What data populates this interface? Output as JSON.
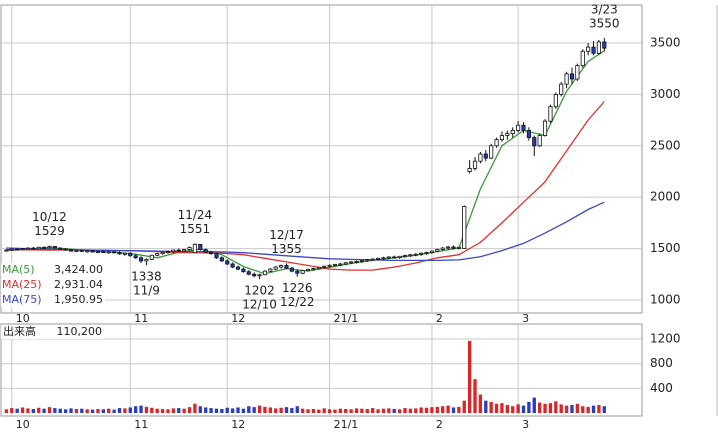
{
  "chart_data": {
    "type": "candlestick",
    "xlim": [
      -1,
      118
    ],
    "xticks": [
      {
        "value": 1,
        "label": "10"
      },
      {
        "value": 23,
        "label": "11"
      },
      {
        "value": 41,
        "label": "12"
      },
      {
        "value": 60,
        "label": "21/1"
      },
      {
        "value": 79,
        "label": "2"
      },
      {
        "value": 95,
        "label": "3"
      }
    ],
    "ylim": [
      873,
      3870
    ],
    "yticks": [
      1000,
      1500,
      2000,
      2500,
      3000,
      3500
    ],
    "grid": true,
    "up_color": "#ffffff",
    "down_color": "#1f3fbf",
    "ohlc": [
      [
        1480,
        1495,
        1470,
        1485
      ],
      [
        1485,
        1500,
        1478,
        1495
      ],
      [
        1495,
        1505,
        1485,
        1490
      ],
      [
        1490,
        1505,
        1482,
        1500
      ],
      [
        1500,
        1512,
        1492,
        1505
      ],
      [
        1505,
        1515,
        1495,
        1498
      ],
      [
        1498,
        1518,
        1495,
        1512
      ],
      [
        1512,
        1522,
        1500,
        1508
      ],
      [
        1508,
        1529,
        1505,
        1520
      ],
      [
        1520,
        1525,
        1500,
        1505
      ],
      [
        1505,
        1512,
        1490,
        1495
      ],
      [
        1495,
        1505,
        1480,
        1488
      ],
      [
        1488,
        1495,
        1470,
        1475
      ],
      [
        1475,
        1488,
        1465,
        1482
      ],
      [
        1482,
        1490,
        1468,
        1472
      ],
      [
        1472,
        1482,
        1460,
        1478
      ],
      [
        1478,
        1485,
        1462,
        1466
      ],
      [
        1466,
        1478,
        1455,
        1470
      ],
      [
        1470,
        1480,
        1458,
        1462
      ],
      [
        1462,
        1475,
        1450,
        1468
      ],
      [
        1468,
        1476,
        1455,
        1460
      ],
      [
        1460,
        1472,
        1440,
        1448
      ],
      [
        1448,
        1460,
        1430,
        1455
      ],
      [
        1455,
        1462,
        1420,
        1430
      ],
      [
        1430,
        1445,
        1400,
        1410
      ],
      [
        1410,
        1425,
        1360,
        1380
      ],
      [
        1380,
        1405,
        1338,
        1395
      ],
      [
        1395,
        1440,
        1390,
        1435
      ],
      [
        1435,
        1460,
        1425,
        1450
      ],
      [
        1450,
        1470,
        1440,
        1462
      ],
      [
        1462,
        1480,
        1450,
        1470
      ],
      [
        1470,
        1490,
        1455,
        1485
      ],
      [
        1485,
        1500,
        1470,
        1478
      ],
      [
        1478,
        1495,
        1465,
        1490
      ],
      [
        1490,
        1520,
        1480,
        1510
      ],
      [
        1460,
        1551,
        1455,
        1540
      ],
      [
        1540,
        1545,
        1480,
        1490
      ],
      [
        1490,
        1500,
        1455,
        1465
      ],
      [
        1465,
        1478,
        1440,
        1450
      ],
      [
        1450,
        1462,
        1400,
        1410
      ],
      [
        1410,
        1425,
        1370,
        1380
      ],
      [
        1380,
        1395,
        1340,
        1350
      ],
      [
        1350,
        1365,
        1310,
        1320
      ],
      [
        1320,
        1335,
        1290,
        1300
      ],
      [
        1300,
        1315,
        1265,
        1275
      ],
      [
        1275,
        1290,
        1240,
        1250
      ],
      [
        1250,
        1268,
        1220,
        1235
      ],
      [
        1235,
        1255,
        1202,
        1245
      ],
      [
        1245,
        1290,
        1240,
        1280
      ],
      [
        1280,
        1310,
        1270,
        1300
      ],
      [
        1300,
        1330,
        1290,
        1320
      ],
      [
        1320,
        1345,
        1305,
        1335
      ],
      [
        1335,
        1355,
        1300,
        1310
      ],
      [
        1310,
        1320,
        1270,
        1280
      ],
      [
        1280,
        1295,
        1226,
        1260
      ],
      [
        1260,
        1290,
        1250,
        1285
      ],
      [
        1285,
        1305,
        1275,
        1298
      ],
      [
        1298,
        1312,
        1285,
        1305
      ],
      [
        1305,
        1325,
        1295,
        1318
      ],
      [
        1318,
        1335,
        1305,
        1328
      ],
      [
        1328,
        1345,
        1315,
        1338
      ],
      [
        1338,
        1352,
        1325,
        1345
      ],
      [
        1345,
        1360,
        1332,
        1350
      ],
      [
        1350,
        1368,
        1340,
        1362
      ],
      [
        1362,
        1378,
        1350,
        1370
      ],
      [
        1370,
        1385,
        1355,
        1375
      ],
      [
        1375,
        1390,
        1362,
        1385
      ],
      [
        1385,
        1400,
        1370,
        1392
      ],
      [
        1392,
        1405,
        1378,
        1398
      ],
      [
        1398,
        1412,
        1385,
        1405
      ],
      [
        1405,
        1420,
        1390,
        1410
      ],
      [
        1410,
        1425,
        1398,
        1418
      ],
      [
        1418,
        1432,
        1402,
        1412
      ],
      [
        1412,
        1428,
        1400,
        1425
      ],
      [
        1425,
        1440,
        1410,
        1432
      ],
      [
        1432,
        1448,
        1418,
        1440
      ],
      [
        1440,
        1455,
        1425,
        1445
      ],
      [
        1445,
        1462,
        1430,
        1455
      ],
      [
        1455,
        1470,
        1440,
        1462
      ],
      [
        1462,
        1480,
        1450,
        1475
      ],
      [
        1475,
        1500,
        1465,
        1492
      ],
      [
        1492,
        1515,
        1480,
        1505
      ],
      [
        1505,
        1525,
        1490,
        1515
      ],
      [
        1515,
        1530,
        1495,
        1502
      ],
      [
        1502,
        1520,
        1490,
        1512
      ],
      [
        1500,
        1920,
        1495,
        1910
      ],
      [
        2250,
        2360,
        2230,
        2280
      ],
      [
        2280,
        2390,
        2260,
        2350
      ],
      [
        2350,
        2440,
        2330,
        2420
      ],
      [
        2420,
        2460,
        2350,
        2380
      ],
      [
        2380,
        2520,
        2370,
        2500
      ],
      [
        2500,
        2580,
        2480,
        2560
      ],
      [
        2560,
        2640,
        2540,
        2600
      ],
      [
        2600,
        2650,
        2560,
        2620
      ],
      [
        2620,
        2680,
        2580,
        2650
      ],
      [
        2650,
        2740,
        2630,
        2700
      ],
      [
        2700,
        2730,
        2620,
        2650
      ],
      [
        2650,
        2680,
        2550,
        2580
      ],
      [
        2580,
        2600,
        2400,
        2500
      ],
      [
        2500,
        2620,
        2490,
        2600
      ],
      [
        2600,
        2760,
        2590,
        2740
      ],
      [
        2740,
        2900,
        2720,
        2880
      ],
      [
        2880,
        3020,
        2860,
        3000
      ],
      [
        3000,
        3120,
        2980,
        3100
      ],
      [
        3100,
        3220,
        3060,
        3200
      ],
      [
        3200,
        3260,
        3100,
        3150
      ],
      [
        3150,
        3300,
        3130,
        3280
      ],
      [
        3280,
        3440,
        3260,
        3420
      ],
      [
        3420,
        3500,
        3380,
        3460
      ],
      [
        3460,
        3520,
        3380,
        3400
      ],
      [
        3400,
        3530,
        3390,
        3510
      ],
      [
        3510,
        3550,
        3420,
        3450
      ]
    ],
    "ma": [
      {
        "name": "MA(5)",
        "color": "#3a9a3a",
        "value_label": "3,424.00",
        "x": [
          0,
          4,
          8,
          12,
          16,
          20,
          24,
          28,
          32,
          36,
          40,
          44,
          48,
          52,
          56,
          60,
          64,
          68,
          72,
          76,
          80,
          84,
          88,
          92,
          96,
          100,
          104,
          108,
          111
        ],
        "values": [
          1480,
          1495,
          1508,
          1495,
          1475,
          1465,
          1445,
          1410,
          1465,
          1495,
          1440,
          1325,
          1255,
          1305,
          1282,
          1318,
          1355,
          1385,
          1410,
          1435,
          1470,
          1505,
          2080,
          2500,
          2650,
          2600,
          3030,
          3320,
          3424
        ]
      },
      {
        "name": "MA(25)",
        "color": "#e0302a",
        "value_label": "2,931.04",
        "x": [
          0,
          4,
          8,
          12,
          16,
          20,
          24,
          28,
          32,
          36,
          40,
          44,
          48,
          52,
          56,
          60,
          64,
          68,
          72,
          76,
          80,
          84,
          88,
          92,
          96,
          100,
          104,
          108,
          111
        ],
        "values": [
          1490,
          1488,
          1485,
          1486,
          1485,
          1482,
          1478,
          1470,
          1462,
          1458,
          1455,
          1440,
          1405,
          1370,
          1335,
          1300,
          1290,
          1290,
          1320,
          1360,
          1410,
          1440,
          1560,
          1750,
          1950,
          2150,
          2450,
          2750,
          2931.04
        ]
      },
      {
        "name": "MA(75)",
        "color": "#3a48c8",
        "value_label": "1,950.95",
        "x": [
          0,
          4,
          8,
          12,
          16,
          20,
          24,
          28,
          32,
          36,
          40,
          44,
          48,
          52,
          56,
          60,
          64,
          68,
          72,
          76,
          80,
          84,
          88,
          92,
          96,
          100,
          104,
          108,
          111
        ],
        "values": [
          1505,
          1500,
          1495,
          1490,
          1485,
          1480,
          1478,
          1475,
          1472,
          1470,
          1468,
          1460,
          1445,
          1430,
          1415,
          1400,
          1395,
          1390,
          1385,
          1385,
          1385,
          1390,
          1420,
          1480,
          1550,
          1650,
          1760,
          1880,
          1950.95
        ]
      }
    ],
    "annotations": [
      {
        "date": "10/12",
        "value": 1529,
        "x": 8
      },
      {
        "date": "11/9",
        "value": 1338,
        "x": 26
      },
      {
        "date": "11/24",
        "value": 1551,
        "x": 35
      },
      {
        "date": "12/10",
        "value": 1202,
        "x": 47
      },
      {
        "date": "12/17",
        "value": 1355,
        "x": 52
      },
      {
        "date": "12/22",
        "value": 1226,
        "x": 54
      },
      {
        "date": "3/23",
        "value": 3550,
        "x": 111
      }
    ],
    "volume": {
      "title": "出来高",
      "value_label": "110,200",
      "up_color": "#d9262a",
      "down_color": "#2a3fc0",
      "ylim": [
        0,
        1347
      ],
      "yticks": [
        400,
        800,
        1200
      ],
      "values": [
        60,
        80,
        70,
        90,
        75,
        65,
        85,
        70,
        95,
        80,
        70,
        60,
        75,
        65,
        70,
        60,
        55,
        65,
        60,
        70,
        55,
        80,
        75,
        90,
        110,
        120,
        100,
        85,
        70,
        65,
        60,
        75,
        80,
        70,
        95,
        150,
        110,
        90,
        80,
        70,
        65,
        85,
        75,
        90,
        70,
        110,
        95,
        120,
        100,
        90,
        75,
        85,
        95,
        80,
        110,
        70,
        60,
        65,
        55,
        75,
        60,
        55,
        70,
        65,
        60,
        75,
        70,
        65,
        80,
        60,
        70,
        75,
        65,
        60,
        80,
        70,
        75,
        90,
        85,
        95,
        100,
        110,
        120,
        90,
        100,
        200,
        1170,
        550,
        300,
        200,
        180,
        150,
        160,
        130,
        110,
        140,
        120,
        180,
        250,
        170,
        150,
        160,
        190,
        140,
        120,
        130,
        150,
        110,
        100,
        120,
        130,
        110.2
      ]
    }
  }
}
